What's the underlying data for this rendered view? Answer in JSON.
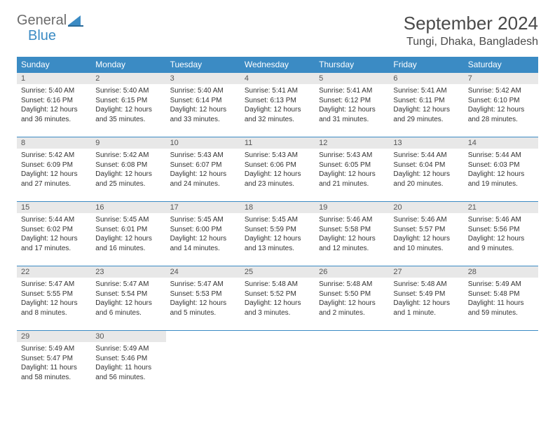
{
  "logo": {
    "line1": "General",
    "line2": "Blue"
  },
  "colors": {
    "header_bg": "#3b8bc4",
    "daynum_bg": "#e8e8e8",
    "border": "#3b8bc4",
    "text_gray": "#4a4a4a",
    "logo_gray": "#6b6b6b",
    "logo_blue": "#3b8bc4"
  },
  "title": "September 2024",
  "location": "Tungi, Dhaka, Bangladesh",
  "day_headers": [
    "Sunday",
    "Monday",
    "Tuesday",
    "Wednesday",
    "Thursday",
    "Friday",
    "Saturday"
  ],
  "weeks": [
    [
      {
        "num": "1",
        "sunrise": "Sunrise: 5:40 AM",
        "sunset": "Sunset: 6:16 PM",
        "daylight1": "Daylight: 12 hours",
        "daylight2": "and 36 minutes."
      },
      {
        "num": "2",
        "sunrise": "Sunrise: 5:40 AM",
        "sunset": "Sunset: 6:15 PM",
        "daylight1": "Daylight: 12 hours",
        "daylight2": "and 35 minutes."
      },
      {
        "num": "3",
        "sunrise": "Sunrise: 5:40 AM",
        "sunset": "Sunset: 6:14 PM",
        "daylight1": "Daylight: 12 hours",
        "daylight2": "and 33 minutes."
      },
      {
        "num": "4",
        "sunrise": "Sunrise: 5:41 AM",
        "sunset": "Sunset: 6:13 PM",
        "daylight1": "Daylight: 12 hours",
        "daylight2": "and 32 minutes."
      },
      {
        "num": "5",
        "sunrise": "Sunrise: 5:41 AM",
        "sunset": "Sunset: 6:12 PM",
        "daylight1": "Daylight: 12 hours",
        "daylight2": "and 31 minutes."
      },
      {
        "num": "6",
        "sunrise": "Sunrise: 5:41 AM",
        "sunset": "Sunset: 6:11 PM",
        "daylight1": "Daylight: 12 hours",
        "daylight2": "and 29 minutes."
      },
      {
        "num": "7",
        "sunrise": "Sunrise: 5:42 AM",
        "sunset": "Sunset: 6:10 PM",
        "daylight1": "Daylight: 12 hours",
        "daylight2": "and 28 minutes."
      }
    ],
    [
      {
        "num": "8",
        "sunrise": "Sunrise: 5:42 AM",
        "sunset": "Sunset: 6:09 PM",
        "daylight1": "Daylight: 12 hours",
        "daylight2": "and 27 minutes."
      },
      {
        "num": "9",
        "sunrise": "Sunrise: 5:42 AM",
        "sunset": "Sunset: 6:08 PM",
        "daylight1": "Daylight: 12 hours",
        "daylight2": "and 25 minutes."
      },
      {
        "num": "10",
        "sunrise": "Sunrise: 5:43 AM",
        "sunset": "Sunset: 6:07 PM",
        "daylight1": "Daylight: 12 hours",
        "daylight2": "and 24 minutes."
      },
      {
        "num": "11",
        "sunrise": "Sunrise: 5:43 AM",
        "sunset": "Sunset: 6:06 PM",
        "daylight1": "Daylight: 12 hours",
        "daylight2": "and 23 minutes."
      },
      {
        "num": "12",
        "sunrise": "Sunrise: 5:43 AM",
        "sunset": "Sunset: 6:05 PM",
        "daylight1": "Daylight: 12 hours",
        "daylight2": "and 21 minutes."
      },
      {
        "num": "13",
        "sunrise": "Sunrise: 5:44 AM",
        "sunset": "Sunset: 6:04 PM",
        "daylight1": "Daylight: 12 hours",
        "daylight2": "and 20 minutes."
      },
      {
        "num": "14",
        "sunrise": "Sunrise: 5:44 AM",
        "sunset": "Sunset: 6:03 PM",
        "daylight1": "Daylight: 12 hours",
        "daylight2": "and 19 minutes."
      }
    ],
    [
      {
        "num": "15",
        "sunrise": "Sunrise: 5:44 AM",
        "sunset": "Sunset: 6:02 PM",
        "daylight1": "Daylight: 12 hours",
        "daylight2": "and 17 minutes."
      },
      {
        "num": "16",
        "sunrise": "Sunrise: 5:45 AM",
        "sunset": "Sunset: 6:01 PM",
        "daylight1": "Daylight: 12 hours",
        "daylight2": "and 16 minutes."
      },
      {
        "num": "17",
        "sunrise": "Sunrise: 5:45 AM",
        "sunset": "Sunset: 6:00 PM",
        "daylight1": "Daylight: 12 hours",
        "daylight2": "and 14 minutes."
      },
      {
        "num": "18",
        "sunrise": "Sunrise: 5:45 AM",
        "sunset": "Sunset: 5:59 PM",
        "daylight1": "Daylight: 12 hours",
        "daylight2": "and 13 minutes."
      },
      {
        "num": "19",
        "sunrise": "Sunrise: 5:46 AM",
        "sunset": "Sunset: 5:58 PM",
        "daylight1": "Daylight: 12 hours",
        "daylight2": "and 12 minutes."
      },
      {
        "num": "20",
        "sunrise": "Sunrise: 5:46 AM",
        "sunset": "Sunset: 5:57 PM",
        "daylight1": "Daylight: 12 hours",
        "daylight2": "and 10 minutes."
      },
      {
        "num": "21",
        "sunrise": "Sunrise: 5:46 AM",
        "sunset": "Sunset: 5:56 PM",
        "daylight1": "Daylight: 12 hours",
        "daylight2": "and 9 minutes."
      }
    ],
    [
      {
        "num": "22",
        "sunrise": "Sunrise: 5:47 AM",
        "sunset": "Sunset: 5:55 PM",
        "daylight1": "Daylight: 12 hours",
        "daylight2": "and 8 minutes."
      },
      {
        "num": "23",
        "sunrise": "Sunrise: 5:47 AM",
        "sunset": "Sunset: 5:54 PM",
        "daylight1": "Daylight: 12 hours",
        "daylight2": "and 6 minutes."
      },
      {
        "num": "24",
        "sunrise": "Sunrise: 5:47 AM",
        "sunset": "Sunset: 5:53 PM",
        "daylight1": "Daylight: 12 hours",
        "daylight2": "and 5 minutes."
      },
      {
        "num": "25",
        "sunrise": "Sunrise: 5:48 AM",
        "sunset": "Sunset: 5:52 PM",
        "daylight1": "Daylight: 12 hours",
        "daylight2": "and 3 minutes."
      },
      {
        "num": "26",
        "sunrise": "Sunrise: 5:48 AM",
        "sunset": "Sunset: 5:50 PM",
        "daylight1": "Daylight: 12 hours",
        "daylight2": "and 2 minutes."
      },
      {
        "num": "27",
        "sunrise": "Sunrise: 5:48 AM",
        "sunset": "Sunset: 5:49 PM",
        "daylight1": "Daylight: 12 hours",
        "daylight2": "and 1 minute."
      },
      {
        "num": "28",
        "sunrise": "Sunrise: 5:49 AM",
        "sunset": "Sunset: 5:48 PM",
        "daylight1": "Daylight: 11 hours",
        "daylight2": "and 59 minutes."
      }
    ],
    [
      {
        "num": "29",
        "sunrise": "Sunrise: 5:49 AM",
        "sunset": "Sunset: 5:47 PM",
        "daylight1": "Daylight: 11 hours",
        "daylight2": "and 58 minutes."
      },
      {
        "num": "30",
        "sunrise": "Sunrise: 5:49 AM",
        "sunset": "Sunset: 5:46 PM",
        "daylight1": "Daylight: 11 hours",
        "daylight2": "and 56 minutes."
      },
      null,
      null,
      null,
      null,
      null
    ]
  ]
}
